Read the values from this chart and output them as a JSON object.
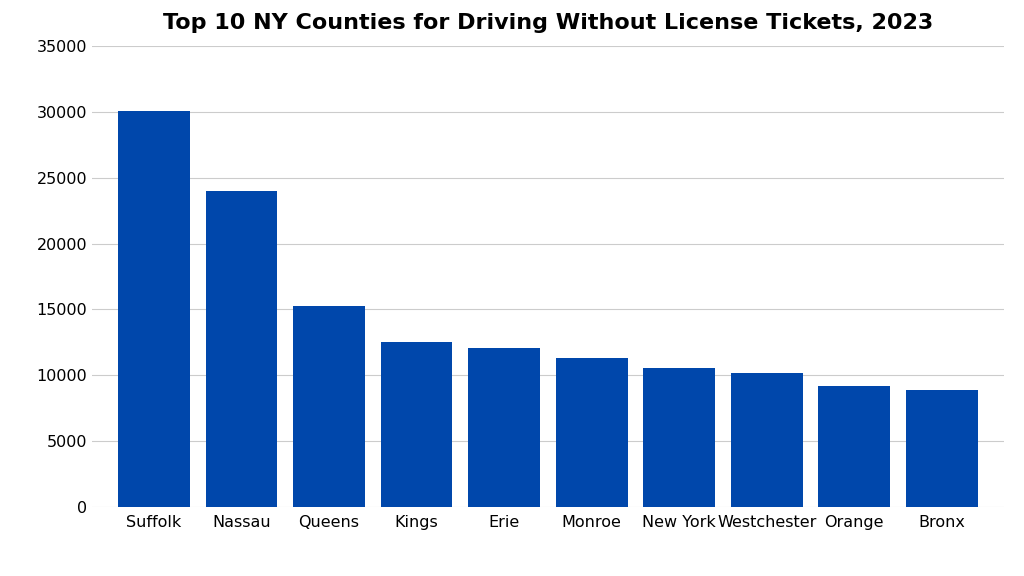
{
  "title": "Top 10 NY Counties for Driving Without License Tickets, 2023",
  "categories": [
    "Suffolk",
    "Nassau",
    "Queens",
    "Kings",
    "Erie",
    "Monroe",
    "New York",
    "Westchester",
    "Orange",
    "Bronx"
  ],
  "values": [
    30100,
    24000,
    15250,
    12500,
    12100,
    11300,
    10550,
    10200,
    9150,
    8850
  ],
  "bar_color": "#0047AB",
  "ylim": [
    0,
    35000
  ],
  "yticks": [
    0,
    5000,
    10000,
    15000,
    20000,
    25000,
    30000,
    35000
  ],
  "background_color": "#ffffff",
  "title_fontsize": 16,
  "tick_fontsize": 11.5,
  "grid_color": "#cccccc",
  "bar_width": 0.82
}
